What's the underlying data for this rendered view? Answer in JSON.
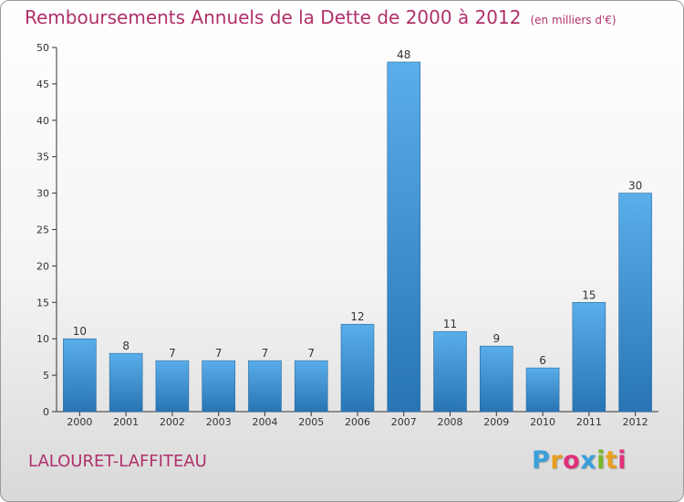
{
  "header": {
    "title": "Remboursements Annuels de la Dette de 2000 à 2012",
    "unit": "(en milliers d'€)"
  },
  "footer": {
    "commune": "LALOURET-LAFFITEAU",
    "logo_letters": [
      "P",
      "r",
      "o",
      "x",
      "i",
      "t",
      "i"
    ],
    "logo_colors": [
      "#3aa0dc",
      "#e8a020",
      "#e0307a",
      "#3aa0dc",
      "#78b828",
      "#e8a020",
      "#e0307a"
    ]
  },
  "colors": {
    "title": "#b0306a",
    "bar_light": "#5aaeea",
    "bar_dark": "#2874b4",
    "axis": "#333333",
    "grid": "#dddddd"
  },
  "chart_data": {
    "type": "bar",
    "categories": [
      "2000",
      "2001",
      "2002",
      "2003",
      "2004",
      "2005",
      "2006",
      "2007",
      "2008",
      "2009",
      "2010",
      "2011",
      "2012"
    ],
    "values": [
      10,
      8,
      7,
      7,
      7,
      7,
      12,
      48,
      11,
      9,
      6,
      15,
      30
    ],
    "ylim": [
      0,
      50
    ],
    "yticks": [
      0,
      5,
      10,
      15,
      20,
      25,
      30,
      35,
      40,
      45,
      50
    ],
    "data_labels": true,
    "grid": false
  }
}
